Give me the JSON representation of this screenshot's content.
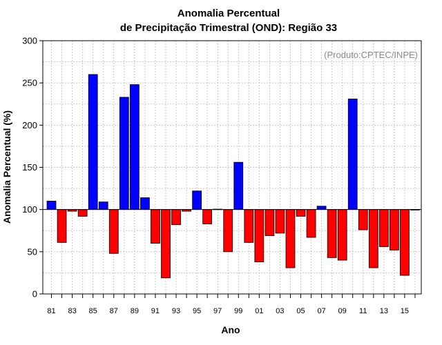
{
  "chart_data": {
    "type": "bar",
    "title_line1": "Anomalia Percentual",
    "title_line2": "de Precipitação Trimestral (OND): Região 33",
    "xlabel": "Ano",
    "ylabel": "Anomalia Percentual (%)",
    "annotation": "(Produto:CPTEC/INPE)",
    "ylim": [
      0,
      300
    ],
    "yticks": [
      0,
      50,
      100,
      150,
      200,
      250,
      300
    ],
    "baseline": 100,
    "grid": true,
    "colors": {
      "above": "#0000ff",
      "below": "#ff0000",
      "edge": "#000000"
    },
    "categories": [
      "81",
      "82",
      "83",
      "84",
      "85",
      "86",
      "87",
      "88",
      "89",
      "90",
      "91",
      "92",
      "93",
      "94",
      "95",
      "96",
      "97",
      "98",
      "99",
      "00",
      "01",
      "02",
      "03",
      "04",
      "05",
      "06",
      "07",
      "08",
      "09",
      "10",
      "11",
      "12",
      "13",
      "14",
      "15",
      "16"
    ],
    "xtick_labels": [
      "81",
      "",
      "83",
      "",
      "85",
      "",
      "87",
      "",
      "89",
      "",
      "91",
      "",
      "93",
      "",
      "95",
      "",
      "97",
      "",
      "99",
      "",
      "01",
      "",
      "03",
      "",
      "05",
      "",
      "07",
      "",
      "09",
      "",
      "11",
      "",
      "13",
      "",
      "15",
      ""
    ],
    "values": [
      110,
      61,
      98,
      92,
      260,
      109,
      48,
      233,
      248,
      114,
      60,
      19,
      82,
      98,
      122,
      83,
      100.5,
      50,
      156,
      61,
      38,
      69,
      72,
      31,
      92,
      67,
      104,
      43,
      40,
      231,
      76,
      31,
      56,
      52,
      22,
      100
    ]
  }
}
